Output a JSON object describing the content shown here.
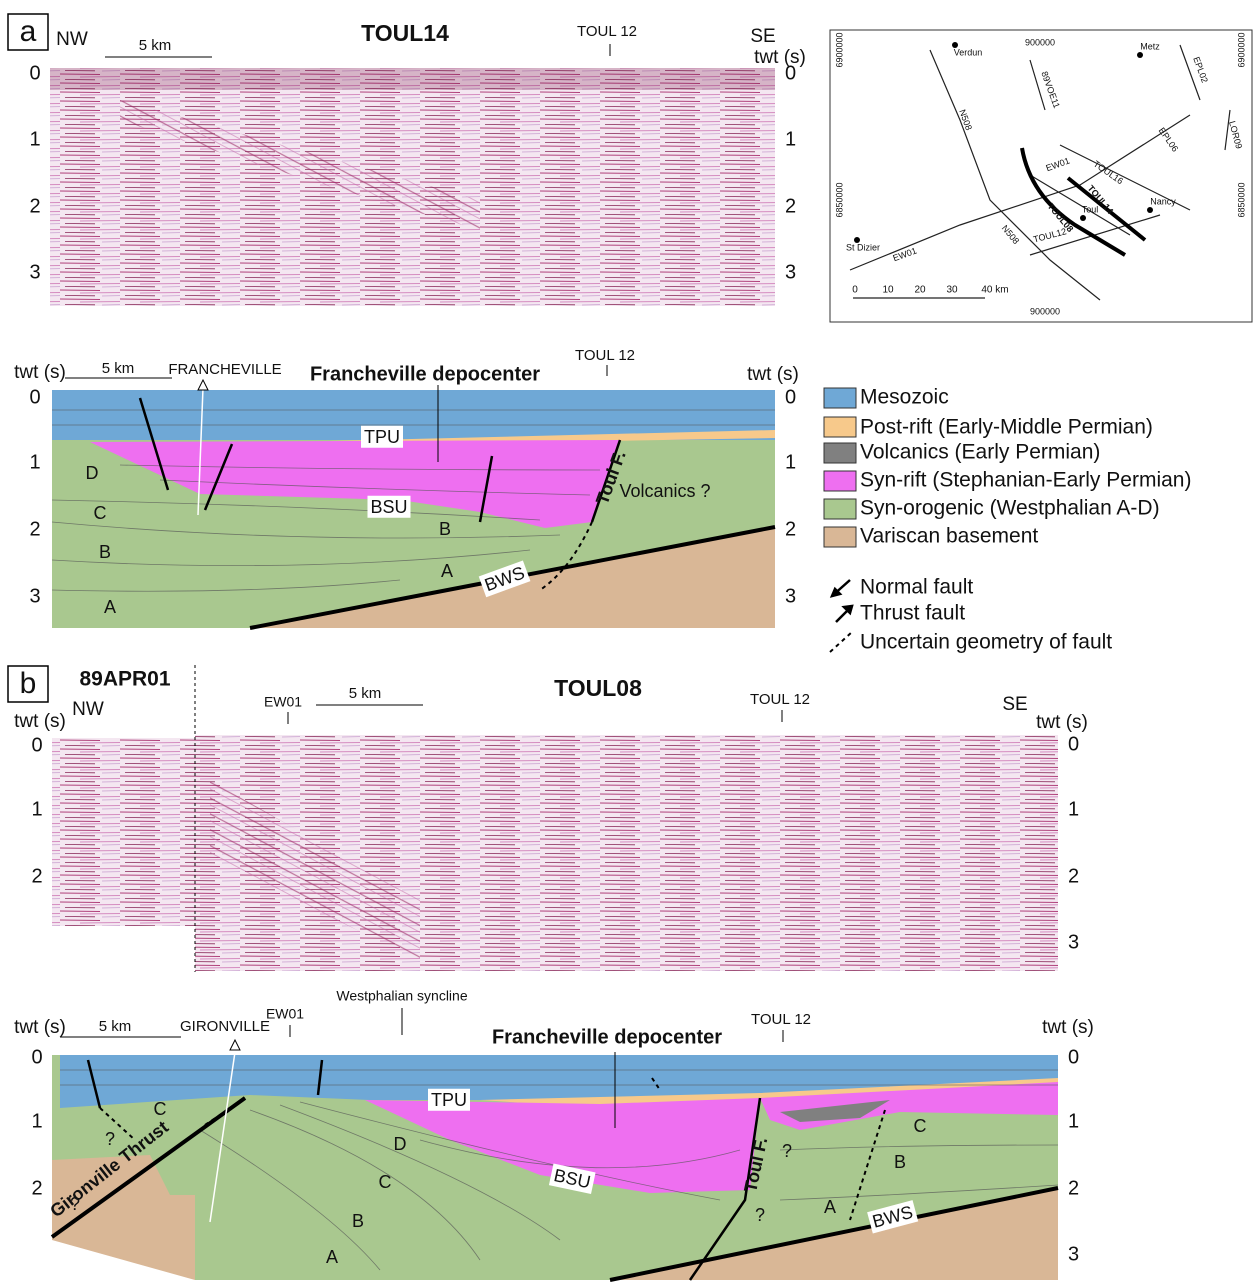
{
  "panel_a": {
    "label": "a",
    "seismic": {
      "title": "TOUL14",
      "left": "NW",
      "right": "SE",
      "right_axis_label": "twt (s)",
      "scale": "5 km",
      "crossing": "TOUL 12",
      "left_ticks": [
        0,
        1,
        2,
        3
      ],
      "right_ticks": [
        0,
        1,
        2,
        3
      ]
    },
    "section": {
      "left_axis_label": "twt (s)",
      "right_axis_label": "twt (s)",
      "scale": "5 km",
      "well": "FRANCHEVILLE",
      "crossing": "TOUL 12",
      "title": "Francheville depocenter",
      "left_ticks": [
        0,
        1,
        2,
        3
      ],
      "right_ticks": [
        0,
        1,
        2,
        3
      ],
      "labels": [
        "TPU",
        "BSU",
        "BWS",
        "Toul F.",
        "Volcanics ?",
        "D",
        "C",
        "B",
        "A",
        "B",
        "A"
      ]
    }
  },
  "map": {
    "coords": [
      "6900000",
      "6850000",
      "900000",
      "6900000",
      "6850000",
      "900000"
    ],
    "places": [
      "Verdun",
      "Metz",
      "Nancy",
      "Toul",
      "St Dizier"
    ],
    "lines": [
      "89VOE11",
      "EPL02",
      "N508",
      "N508",
      "EPL06",
      "LOR09",
      "EW01",
      "EW01",
      "TOUL16",
      "TOUL14",
      "TOUL08",
      "TOUL12"
    ],
    "scale": [
      "0",
      "10",
      "20",
      "30",
      "40 km"
    ]
  },
  "legend": {
    "units": [
      "Mesozoic",
      "Post-rift (Early-Middle Permian)",
      "Volcanics (Early Permian)",
      "Syn-rift (Stephanian-Early Permian)",
      "Syn-orogenic (Westphalian A-D)",
      "Variscan basement"
    ],
    "faults": [
      "Normal fault",
      "Thrust fault",
      "Uncertain geometry of fault"
    ]
  },
  "panel_b": {
    "label": "b",
    "seismic": {
      "left_title": "89APR01",
      "title": "TOUL08",
      "left": "NW",
      "right": "SE",
      "left_axis_label": "twt (s)",
      "right_axis_label": "twt (s)",
      "crossing_1": "EW01",
      "scale": "5 km",
      "crossing_2": "TOUL 12",
      "left_ticks": [
        0,
        1,
        2
      ],
      "right_ticks": [
        0,
        1,
        2,
        3
      ]
    },
    "section": {
      "note": "Westphalian syncline",
      "left_axis_label": "twt (s)",
      "right_axis_label": "twt (s)",
      "scale": "5 km",
      "well": "GIRONVILLE",
      "crossing_1": "EW01",
      "crossing_2": "TOUL 12",
      "title": "Francheville depocenter",
      "left_ticks": [
        0,
        1,
        2
      ],
      "right_ticks": [
        0,
        1,
        2,
        3
      ],
      "labels": [
        "TPU",
        "Gironville Thrust",
        "C",
        "?",
        "?",
        "D",
        "C",
        "B",
        "A",
        "BSU",
        "Toul F.",
        "?",
        "?",
        "C",
        "B",
        "A",
        "BWS"
      ]
    }
  }
}
